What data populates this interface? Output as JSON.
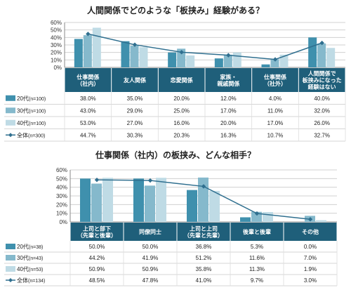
{
  "colors": {
    "s20": "#3f90ad",
    "s30": "#85b9cc",
    "s40": "#bfdbe5",
    "total_line": "#2f6f8f",
    "header_bg": "#1f5f7a",
    "header_text": "#ffffff",
    "grid": "#d0d0d0"
  },
  "chart_data": [
    {
      "type": "bar",
      "title": "人間関係でどのような「板挟み」経験がある？",
      "categories": [
        "仕事関係\n（社内）",
        "友人関係",
        "恋愛関係",
        "家族・\n親戚関係",
        "仕事関係\n（社外）",
        "人間関係で\n板挟みになった\n経験はない"
      ],
      "ylim": [
        0,
        60
      ],
      "yticks": [
        "0%",
        "10%",
        "20%",
        "30%",
        "40%",
        "50%",
        "60%"
      ],
      "grid": true,
      "series": [
        {
          "name": "20代",
          "n": "(n=100)",
          "values": [
            38.0,
            35.0,
            20.0,
            12.0,
            4.0,
            40.0
          ],
          "labels": [
            "38.0%",
            "35.0%",
            "20.0%",
            "12.0%",
            "4.0%",
            "40.0%"
          ]
        },
        {
          "name": "30代",
          "n": "(n=100)",
          "values": [
            43.0,
            29.0,
            25.0,
            17.0,
            11.0,
            32.0
          ],
          "labels": [
            "43.0%",
            "29.0%",
            "25.0%",
            "17.0%",
            "11.0%",
            "32.0%"
          ]
        },
        {
          "name": "40代",
          "n": "(n=100)",
          "values": [
            53.0,
            27.0,
            16.0,
            20.0,
            17.0,
            26.0
          ],
          "labels": [
            "53.0%",
            "27.0%",
            "16.0%",
            "20.0%",
            "17.0%",
            "26.0%"
          ]
        },
        {
          "name": "全体",
          "n": "(n=300)",
          "type": "line",
          "values": [
            44.7,
            30.3,
            20.3,
            16.3,
            10.7,
            32.7
          ],
          "labels": [
            "44.7%",
            "30.3%",
            "20.3%",
            "16.3%",
            "10.7%",
            "32.7%"
          ]
        }
      ]
    },
    {
      "type": "bar",
      "title": "仕事関係（社内）の板挟み、どんな相手？",
      "categories": [
        "上司と部下\n（先輩と後輩）",
        "同僚同士",
        "上司と上司\n（先輩と先輩）",
        "後輩と後輩",
        "その他"
      ],
      "ylim": [
        0,
        60
      ],
      "yticks": [
        "0%",
        "10%",
        "20%",
        "30%",
        "40%",
        "50%",
        "60%"
      ],
      "grid": true,
      "series": [
        {
          "name": "20代",
          "n": "(n=38)",
          "values": [
            50.0,
            50.0,
            36.8,
            5.3,
            0.0
          ],
          "labels": [
            "50.0%",
            "50.0%",
            "36.8%",
            "5.3%",
            "0.0%"
          ]
        },
        {
          "name": "30代",
          "n": "(n=43)",
          "values": [
            44.2,
            41.9,
            51.2,
            11.6,
            7.0
          ],
          "labels": [
            "44.2%",
            "41.9%",
            "51.2%",
            "11.6%",
            "7.0%"
          ]
        },
        {
          "name": "40代",
          "n": "(n=53)",
          "values": [
            50.9,
            50.9,
            35.8,
            11.3,
            1.9
          ],
          "labels": [
            "50.9%",
            "50.9%",
            "35.8%",
            "11.3%",
            "1.9%"
          ]
        },
        {
          "name": "全体",
          "n": "(n=134)",
          "type": "line",
          "values": [
            48.5,
            47.8,
            41.0,
            9.7,
            3.0
          ],
          "labels": [
            "48.5%",
            "47.8%",
            "41.0%",
            "9.7%",
            "3.0%"
          ]
        }
      ]
    }
  ]
}
